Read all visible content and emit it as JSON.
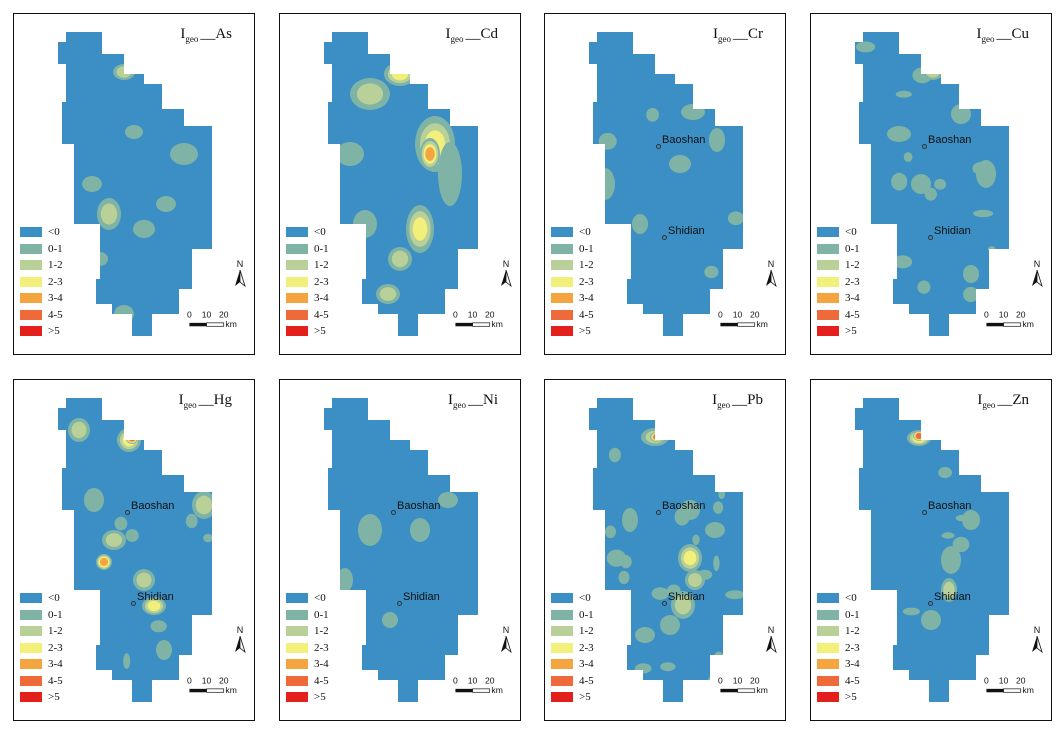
{
  "legend": {
    "items": [
      {
        "label": "<0",
        "color": "#3b8fc4"
      },
      {
        "label": "0-1",
        "color": "#7fb3a6"
      },
      {
        "label": "1-2",
        "color": "#b9d199"
      },
      {
        "label": "2-3",
        "color": "#f2ef7a"
      },
      {
        "label": "3-4",
        "color": "#f5a540"
      },
      {
        "label": "4-5",
        "color": "#ef6a3b"
      },
      {
        "label": ">5",
        "color": "#e3201b"
      }
    ]
  },
  "scale_bar": {
    "ticks": [
      "0",
      "10",
      "20"
    ],
    "unit": "km"
  },
  "north_arrow": {
    "label": "N",
    "icon": "north-arrow-icon"
  },
  "panels": [
    {
      "id": "as",
      "title_main": "I",
      "title_sub": "geo",
      "title_element": "__As",
      "cities": []
    },
    {
      "id": "cd",
      "title_main": "I",
      "title_sub": "geo",
      "title_element": "__Cd",
      "cities": []
    },
    {
      "id": "cr",
      "title_main": "I",
      "title_sub": "geo",
      "title_element": "__Cr",
      "cities": [
        {
          "name": "Baoshan"
        },
        {
          "name": "Shidian"
        }
      ]
    },
    {
      "id": "cu",
      "title_main": "I",
      "title_sub": "geo",
      "title_element": "__Cu",
      "cities": [
        {
          "name": "Baoshan"
        },
        {
          "name": "Shidian"
        }
      ]
    },
    {
      "id": "hg",
      "title_main": "I",
      "title_sub": "geo",
      "title_element": "__Hg",
      "cities": [
        {
          "name": "Baoshan"
        },
        {
          "name": "Shidian"
        }
      ]
    },
    {
      "id": "ni",
      "title_main": "I",
      "title_sub": "geo",
      "title_element": "__Ni",
      "cities": [
        {
          "name": "Baoshan"
        },
        {
          "name": "Shidian"
        }
      ]
    },
    {
      "id": "pb",
      "title_main": "I",
      "title_sub": "geo",
      "title_element": "__Pb",
      "cities": [
        {
          "name": "Baoshan"
        },
        {
          "name": "Shidian"
        }
      ]
    },
    {
      "id": "zn",
      "title_main": "I",
      "title_sub": "geo",
      "title_element": "__Zn",
      "cities": [
        {
          "name": "Baoshan"
        },
        {
          "name": "Shidian"
        }
      ]
    }
  ]
}
